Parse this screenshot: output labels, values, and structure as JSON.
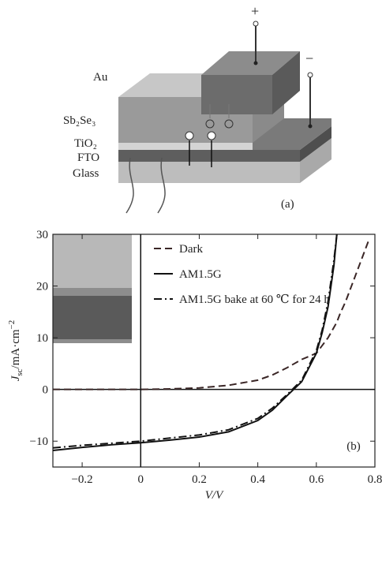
{
  "diagram": {
    "labels": {
      "au": "Au",
      "sb2se3": "Sb₂Se₃",
      "tio2": "TiO₂",
      "fto": "FTO",
      "glass": "Glass",
      "plus": "+",
      "minus": "−"
    },
    "panel_label": "(a)"
  },
  "chart_data": {
    "type": "line",
    "panel_label": "(b)",
    "x_label": "V/V",
    "y_label": {
      "symbol": "J",
      "subscript": "sc",
      "unit": "/mA·cm",
      "exponent": "−2"
    },
    "x": [
      -0.3,
      -0.2,
      -0.1,
      0,
      0.1,
      0.2,
      0.3,
      0.4,
      0.45,
      0.5,
      0.55,
      0.6,
      0.62,
      0.64,
      0.66,
      0.67,
      0.68,
      0.7,
      0.72,
      0.74,
      0.76,
      0.78
    ],
    "series": [
      {
        "name": "Dark",
        "color": "#3a2626",
        "dash": "dashed",
        "values": [
          0,
          0,
          0,
          0,
          0.1,
          0.3,
          0.8,
          1.8,
          2.8,
          4.2,
          5.8,
          7,
          8.5,
          10,
          12,
          13,
          14.5,
          17,
          20,
          23,
          26,
          29
        ]
      },
      {
        "name": "AM1.5G",
        "color": "#111111",
        "dash": "solid",
        "values": [
          -11.8,
          -11.2,
          -10.7,
          -10.3,
          -9.8,
          -9.2,
          -8.2,
          -6,
          -4,
          -1.2,
          1.5,
          7,
          11,
          16,
          24,
          30,
          null,
          null,
          null,
          null,
          null,
          null
        ]
      },
      {
        "name": "AM1.5G bake at 60 ℃ for 24 h",
        "color": "#111111",
        "dash": "dashdot",
        "values": [
          -11.3,
          -10.8,
          -10.4,
          -10,
          -9.4,
          -8.8,
          -7.8,
          -5.6,
          -3.6,
          -1,
          1.8,
          7.5,
          11.5,
          17,
          25,
          30,
          null,
          null,
          null,
          null,
          null,
          null
        ]
      }
    ],
    "xlim": [
      -0.3,
      0.8
    ],
    "ylim": [
      -15,
      30
    ],
    "xticks": [
      {
        "value": -0.2,
        "label": "−0.2"
      },
      0,
      0.2,
      0.4,
      0.6,
      0.8
    ],
    "yticks": [
      {
        "value": -10,
        "label": "−10"
      },
      0,
      10,
      20,
      30
    ],
    "legend": "upper center"
  }
}
